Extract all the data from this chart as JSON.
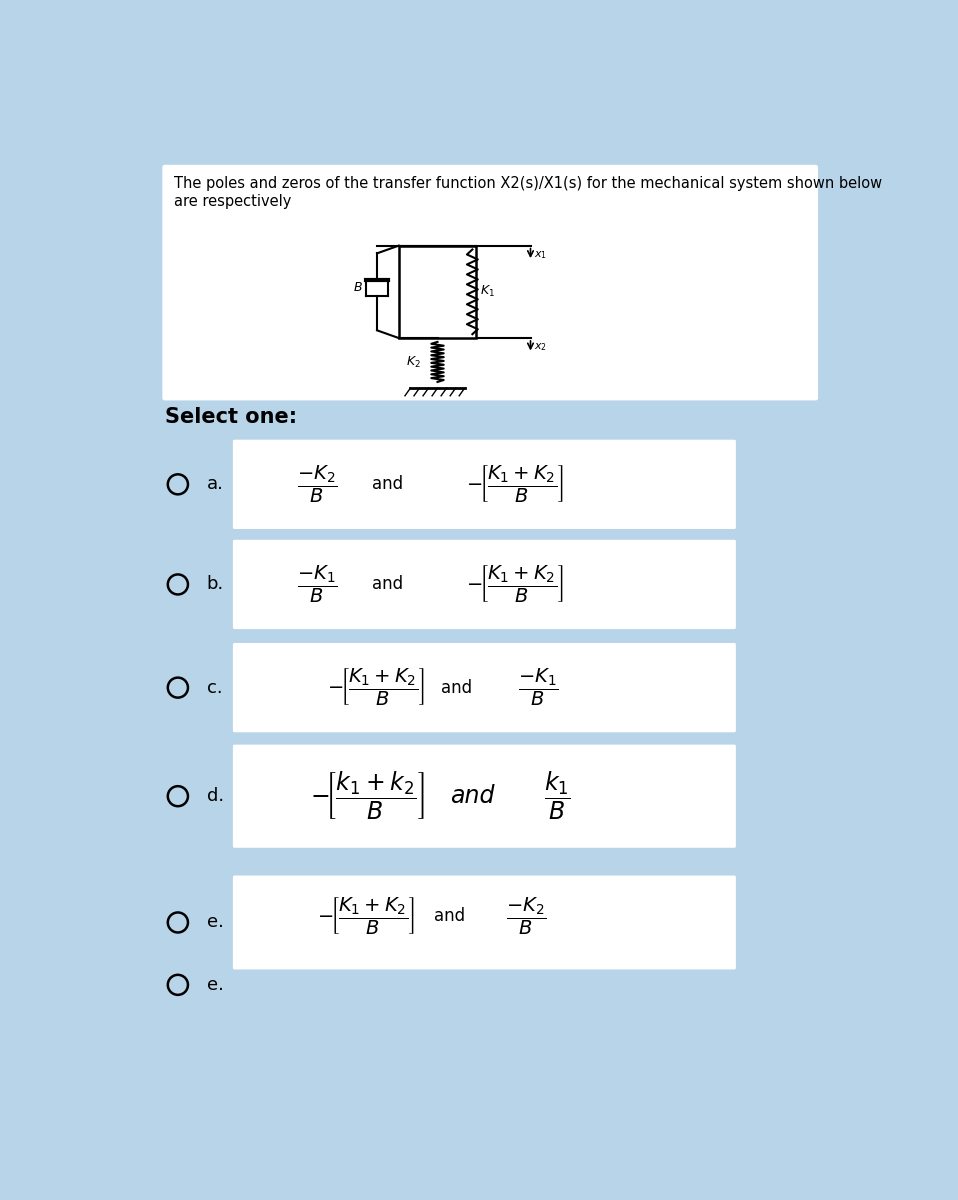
{
  "bg_color": "#b8d4e8",
  "white": "#ffffff",
  "title_text": "The poles and zeros of the transfer function X2(s)/X1(s) for the mechanical system shown below\nare respectively",
  "select_text": "Select one:",
  "options": [
    {
      "label": "a.",
      "expr1": "$\\dfrac{-K_2}{B}$",
      "and_text": "and",
      "expr2": "$-\\!\\left[\\dfrac{K_1+K_2}{B}\\right]$"
    },
    {
      "label": "b.",
      "expr1": "$\\dfrac{-K_1}{B}$",
      "and_text": "and",
      "expr2": "$-\\!\\left[\\dfrac{K_1+K_2}{B}\\right]$"
    },
    {
      "label": "c.",
      "expr1": "$-\\!\\left[\\dfrac{K_1+K_2}{B}\\right]$",
      "and_text": "and",
      "expr2": "$\\dfrac{-K_1}{B}$"
    },
    {
      "label": "d.",
      "expr1": "$-\\!\\left[\\dfrac{k_1+k_2}{B}\\right]$",
      "and_text": "and",
      "expr2": "$\\dfrac{k_1}{B}$"
    },
    {
      "label": "e.",
      "expr1": "$-\\!\\left[\\dfrac{K_1+K_2}{B}\\right]$",
      "and_text": "and",
      "expr2": "$\\dfrac{-K_2}{B}$"
    }
  ],
  "title_fontsize": 10.5,
  "select_fontsize": 15,
  "label_fontsize": 13,
  "expr_fontsize_ab": 14,
  "expr_fontsize_ce": 14,
  "expr_fontsize_d": 17,
  "and_fontsize_abc": 12,
  "and_fontsize_d": 17,
  "and_fontsize_e": 12
}
